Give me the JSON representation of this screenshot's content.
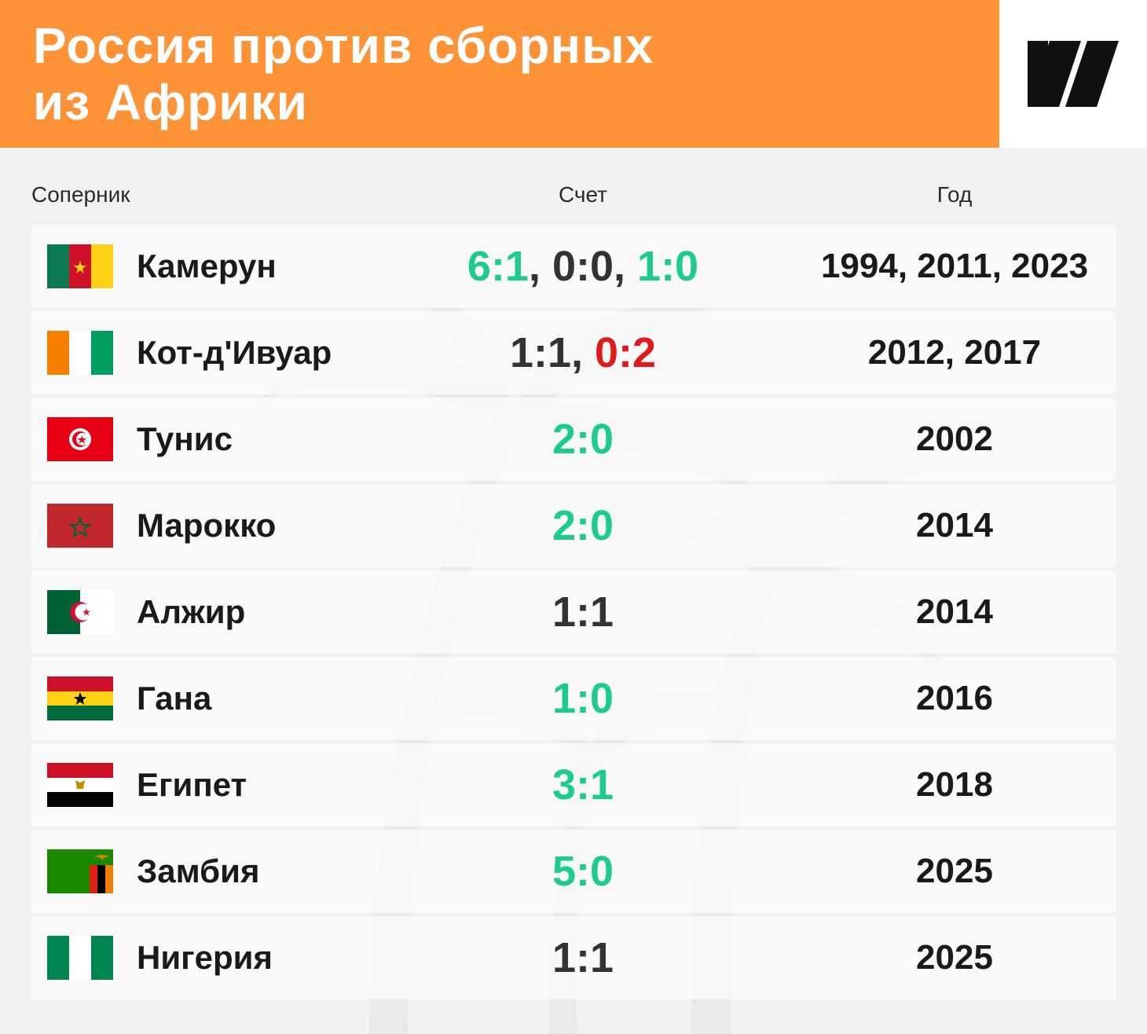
{
  "header": {
    "title_line1": "Россия против сборных",
    "title_line2": "из Африки"
  },
  "logo": {
    "icon": "brand-slash-logo-icon",
    "color": "#111111"
  },
  "colors": {
    "accent": "#fd9236",
    "win": "#1ccc8c",
    "draw": "#333333",
    "loss": "#e11919"
  },
  "columns": {
    "opponent": "Соперник",
    "score": "Счет",
    "year": "Год"
  },
  "rows": [
    {
      "flag": "cameroon-flag-icon",
      "name": "Камерун",
      "scores": [
        {
          "text": "6:1",
          "result": "win"
        },
        {
          "text": "0:0",
          "result": "draw"
        },
        {
          "text": "1:0",
          "result": "win"
        }
      ],
      "years": "1994, 2011, 2023"
    },
    {
      "flag": "ivory-coast-flag-icon",
      "name": "Кот-д'Ивуар",
      "scores": [
        {
          "text": "1:1",
          "result": "draw"
        },
        {
          "text": "0:2",
          "result": "loss"
        }
      ],
      "years": "2012, 2017"
    },
    {
      "flag": "tunisia-flag-icon",
      "name": "Тунис",
      "scores": [
        {
          "text": "2:0",
          "result": "win"
        }
      ],
      "years": "2002"
    },
    {
      "flag": "morocco-flag-icon",
      "name": "Марокко",
      "scores": [
        {
          "text": "2:0",
          "result": "win"
        }
      ],
      "years": "2014"
    },
    {
      "flag": "algeria-flag-icon",
      "name": "Алжир",
      "scores": [
        {
          "text": "1:1",
          "result": "draw"
        }
      ],
      "years": "2014"
    },
    {
      "flag": "ghana-flag-icon",
      "name": "Гана",
      "scores": [
        {
          "text": "1:0",
          "result": "win"
        }
      ],
      "years": "2016"
    },
    {
      "flag": "egypt-flag-icon",
      "name": "Египет",
      "scores": [
        {
          "text": "3:1",
          "result": "win"
        }
      ],
      "years": "2018"
    },
    {
      "flag": "zambia-flag-icon",
      "name": "Замбия",
      "scores": [
        {
          "text": "5:0",
          "result": "win"
        }
      ],
      "years": "2025"
    },
    {
      "flag": "nigeria-flag-icon",
      "name": "Нигерия",
      "scores": [
        {
          "text": "1:1",
          "result": "draw"
        }
      ],
      "years": "2025"
    }
  ]
}
